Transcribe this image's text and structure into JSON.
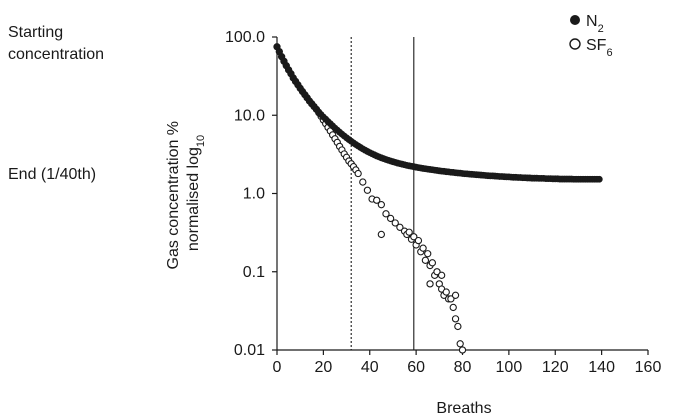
{
  "annotations": {
    "start_line1": "Starting",
    "start_line2": "concentration",
    "end_label": "End (1/40th)"
  },
  "chart_data": {
    "type": "scatter",
    "title": "",
    "xlabel": "Breaths",
    "ylabel_line1": "Gas concentration %",
    "ylabel_line2_main": "normalised log",
    "ylabel_line2_sub": "10",
    "xlim": [
      0,
      160
    ],
    "ylim": [
      0.01,
      100
    ],
    "y_scale": "log",
    "x_ticks": [
      "0",
      "20",
      "40",
      "60",
      "80",
      "100",
      "120",
      "140",
      "160"
    ],
    "y_ticks": [
      "100.0",
      "10.0",
      "1.0",
      "0.1",
      "0.01"
    ],
    "grid": false,
    "legend_position": "top-right",
    "reference_lines": [
      {
        "x": 32,
        "style": "dotted"
      },
      {
        "x": 59,
        "style": "solid"
      }
    ],
    "series": [
      {
        "name": "N2",
        "legend_main": "N",
        "legend_sub": "2",
        "marker": "filled-circle",
        "color": "#1a1a1a",
        "x": [
          0,
          1,
          2,
          3,
          4,
          5,
          6,
          7,
          8,
          9,
          10,
          11,
          12,
          13,
          14,
          15,
          16,
          17,
          18,
          19,
          20,
          21,
          22,
          23,
          24,
          25,
          26,
          27,
          28,
          29,
          30,
          31,
          32,
          33,
          34,
          35,
          36,
          37,
          38,
          39,
          40,
          41,
          42,
          43,
          44,
          45,
          46,
          47,
          48,
          49,
          50,
          51,
          52,
          53,
          54,
          55,
          56,
          57,
          58,
          59,
          60,
          61,
          62,
          63,
          64,
          65,
          66,
          67,
          68,
          69,
          70,
          71,
          72,
          73,
          74,
          75,
          76,
          77,
          78,
          79,
          80,
          81,
          82,
          83,
          84,
          85,
          86,
          87,
          88,
          89,
          90,
          91,
          92,
          93,
          94,
          95,
          96,
          97,
          98,
          99,
          100,
          101,
          102,
          103,
          104,
          105,
          106,
          107,
          108,
          109,
          110,
          111,
          112,
          113,
          114,
          115,
          116,
          117,
          118,
          119,
          120,
          121,
          122,
          123,
          124,
          125,
          126,
          127,
          128,
          129,
          130,
          131,
          132,
          133,
          134,
          135,
          136,
          137,
          138,
          139
        ],
        "y": [
          75,
          65,
          56,
          49,
          43,
          38,
          34,
          30,
          27.1,
          24.5,
          22.1,
          20.1,
          18.3,
          16.7,
          15.2,
          14,
          12.9,
          11.9,
          11,
          10.2,
          9.5,
          8.9,
          8.3,
          7.8,
          7.3,
          6.85,
          6.45,
          6.08,
          5.74,
          5.43,
          5.15,
          4.89,
          4.65,
          4.43,
          4.23,
          4.05,
          3.88,
          3.72,
          3.58,
          3.45,
          3.33,
          3.22,
          3.12,
          3.02,
          2.94,
          2.86,
          2.79,
          2.72,
          2.66,
          2.6,
          2.55,
          2.5,
          2.45,
          2.41,
          2.37,
          2.33,
          2.29,
          2.26,
          2.23,
          2.2,
          2.17,
          2.14,
          2.12,
          2.09,
          2.07,
          2.05,
          2.03,
          2.01,
          1.99,
          1.97,
          1.95,
          1.93,
          1.92,
          1.9,
          1.89,
          1.87,
          1.86,
          1.84,
          1.83,
          1.82,
          1.8,
          1.79,
          1.78,
          1.77,
          1.76,
          1.75,
          1.74,
          1.73,
          1.72,
          1.71,
          1.7,
          1.69,
          1.68,
          1.68,
          1.67,
          1.66,
          1.65,
          1.65,
          1.64,
          1.63,
          1.63,
          1.62,
          1.61,
          1.61,
          1.6,
          1.6,
          1.59,
          1.59,
          1.58,
          1.58,
          1.57,
          1.57,
          1.57,
          1.56,
          1.56,
          1.56,
          1.55,
          1.55,
          1.55,
          1.54,
          1.54,
          1.54,
          1.53,
          1.53,
          1.53,
          1.53,
          1.53,
          1.53,
          1.52,
          1.52,
          1.52,
          1.52,
          1.52,
          1.52,
          1.52,
          1.52,
          1.52,
          1.52,
          1.52,
          1.52
        ]
      },
      {
        "name": "SF6",
        "legend_main": "SF",
        "legend_sub": "6",
        "marker": "open-circle",
        "color": "#1a1a1a",
        "x": [
          0,
          1,
          2,
          3,
          4,
          5,
          6,
          7,
          8,
          9,
          10,
          11,
          12,
          13,
          14,
          15,
          16,
          17,
          18,
          19,
          20,
          21,
          22,
          23,
          24,
          25,
          26,
          27,
          28,
          29,
          30,
          31,
          32,
          33,
          34,
          35,
          37,
          39,
          41,
          43,
          45,
          47,
          49,
          51,
          53,
          55,
          56,
          57,
          58,
          59,
          60,
          61,
          62,
          63,
          64,
          65,
          66,
          67,
          68,
          69,
          70,
          71,
          72,
          73,
          74,
          75,
          76,
          77,
          78,
          79,
          80
        ],
        "y": [
          75,
          65,
          56,
          49,
          43,
          38,
          34,
          30,
          27.1,
          24.5,
          22.1,
          20.1,
          18.3,
          16.7,
          15.2,
          14,
          12.9,
          11.9,
          10.8,
          9.7,
          8.7,
          7.8,
          7,
          6.3,
          5.6,
          5,
          4.5,
          4,
          3.6,
          3.2,
          2.9,
          2.6,
          2.4,
          2.2,
          2,
          1.8,
          1.4,
          1.1,
          0.85,
          0.82,
          0.72,
          0.55,
          0.48,
          0.42,
          0.37,
          0.33,
          0.3,
          0.32,
          0.26,
          0.28,
          0.22,
          0.25,
          0.18,
          0.2,
          0.14,
          0.17,
          0.12,
          0.13,
          0.09,
          0.1,
          0.07,
          0.06,
          0.05,
          0.055,
          0.045,
          0.045,
          0.035,
          0.025,
          0.02,
          0.012,
          0.01
        ]
      }
    ],
    "sf6_extra_points": {
      "x": [
        45,
        66,
        71,
        77
      ],
      "y": [
        0.3,
        0.07,
        0.09,
        0.05
      ]
    }
  }
}
